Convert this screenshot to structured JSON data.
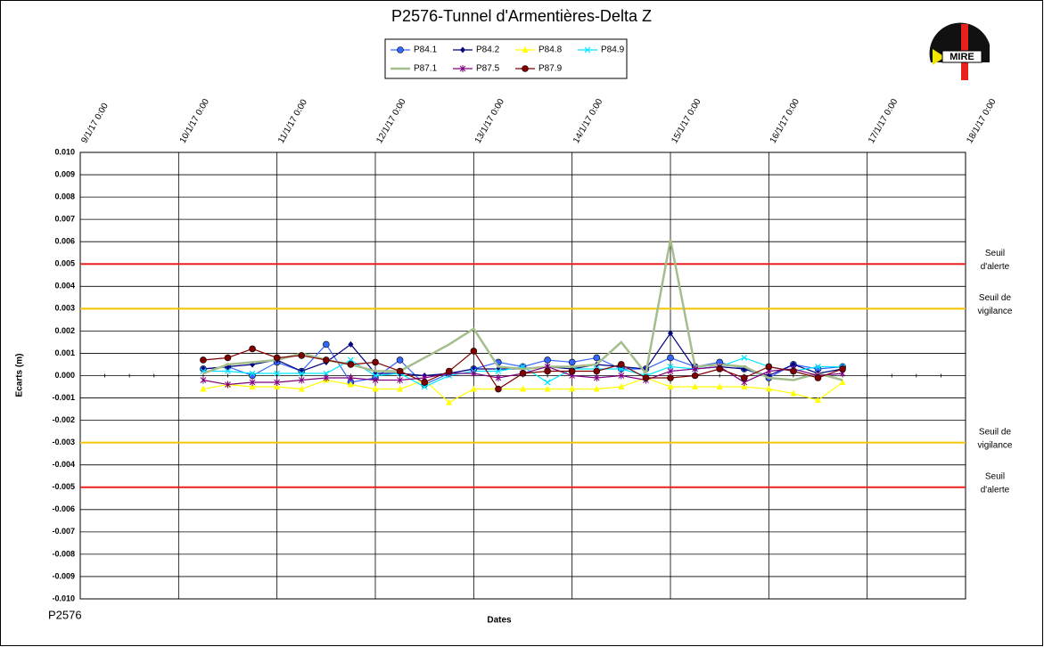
{
  "chart_data": {
    "type": "line",
    "title": "P2576-Tunnel  d'Armentières-Delta  Z",
    "y_label": "Ecarts (m)",
    "x_label": "Dates",
    "footer": "P2576",
    "logo": "MIRE",
    "grid": true,
    "legend_position": "top",
    "xlim": [
      "2017-01-09T00:00",
      "2017-01-18T00:00"
    ],
    "xticks": [
      {
        "value": "2017-01-09T00:00",
        "label": "9/1/17 0:00"
      },
      {
        "value": "2017-01-10T00:00",
        "label": "10/1/17 0:00"
      },
      {
        "value": "2017-01-11T00:00",
        "label": "11/1/17 0:00"
      },
      {
        "value": "2017-01-12T00:00",
        "label": "12/1/17 0:00"
      },
      {
        "value": "2017-01-13T00:00",
        "label": "13/1/17 0:00"
      },
      {
        "value": "2017-01-14T00:00",
        "label": "14/1/17 0:00"
      },
      {
        "value": "2017-01-15T00:00",
        "label": "15/1/17 0:00"
      },
      {
        "value": "2017-01-16T00:00",
        "label": "16/1/17 0:00"
      },
      {
        "value": "2017-01-17T00:00",
        "label": "17/1/17 0:00"
      },
      {
        "value": "2017-01-18T00:00",
        "label": "18/1/17 0:00"
      }
    ],
    "ylim": [
      -0.01,
      0.01
    ],
    "yticks": [
      {
        "value": 0.01,
        "label": "0.010"
      },
      {
        "value": 0.009,
        "label": "0.009"
      },
      {
        "value": 0.008,
        "label": "0.008"
      },
      {
        "value": 0.007,
        "label": "0.007"
      },
      {
        "value": 0.006,
        "label": "0.006"
      },
      {
        "value": 0.005,
        "label": "0.005"
      },
      {
        "value": 0.004,
        "label": "0.004"
      },
      {
        "value": 0.003,
        "label": "0.003"
      },
      {
        "value": 0.002,
        "label": "0.002"
      },
      {
        "value": 0.001,
        "label": "0.001"
      },
      {
        "value": 0,
        "label": "0.000"
      },
      {
        "value": -0.001,
        "label": "-0.001"
      },
      {
        "value": -0.002,
        "label": "-0.002"
      },
      {
        "value": -0.003,
        "label": "-0.003"
      },
      {
        "value": -0.004,
        "label": "-0.004"
      },
      {
        "value": -0.005,
        "label": "-0.005"
      },
      {
        "value": -0.006,
        "label": "-0.006"
      },
      {
        "value": -0.007,
        "label": "-0.007"
      },
      {
        "value": -0.008,
        "label": "-0.008"
      },
      {
        "value": -0.009,
        "label": "-0.009"
      },
      {
        "value": -0.01,
        "label": "-0.010"
      }
    ],
    "thresholds": [
      {
        "value": 0.005,
        "color": "#e8211d",
        "label": [
          "Seuil",
          "d'alerte"
        ]
      },
      {
        "value": 0.003,
        "color": "#f2c500",
        "label": [
          "Seuil de",
          "vigilance"
        ]
      },
      {
        "value": -0.003,
        "color": "#f2c500",
        "label": [
          "Seuil de",
          "vigilance"
        ]
      },
      {
        "value": -0.005,
        "color": "#e8211d",
        "label": [
          "Seuil",
          "d'alerte"
        ]
      }
    ],
    "x": [
      "2017-01-10T06:00",
      "2017-01-10T12:00",
      "2017-01-10T18:00",
      "2017-01-11T00:00",
      "2017-01-11T06:00",
      "2017-01-11T12:00",
      "2017-01-11T18:00",
      "2017-01-12T00:00",
      "2017-01-12T06:00",
      "2017-01-12T12:00",
      "2017-01-12T18:00",
      "2017-01-13T00:00",
      "2017-01-13T06:00",
      "2017-01-13T12:00",
      "2017-01-13T18:00",
      "2017-01-14T00:00",
      "2017-01-14T06:00",
      "2017-01-14T12:00",
      "2017-01-14T18:00",
      "2017-01-15T00:00",
      "2017-01-15T06:00",
      "2017-01-15T12:00",
      "2017-01-15T18:00",
      "2017-01-16T00:00",
      "2017-01-16T06:00",
      "2017-01-16T12:00",
      "2017-01-16T18:00"
    ],
    "series": [
      {
        "name": "P84.1",
        "color": "#3366ff",
        "marker": "circle",
        "values": [
          0.0003,
          0.0004,
          0.0,
          0.0006,
          0.0002,
          0.0014,
          -0.0003,
          -0.0001,
          0.0007,
          -0.0004,
          0.0001,
          0.0003,
          0.0006,
          0.0004,
          0.0007,
          0.0006,
          0.0008,
          0.0003,
          0.0003,
          0.0008,
          0.0004,
          0.0006,
          0.0003,
          -0.0001,
          0.0005,
          0.0003,
          0.0004
        ]
      },
      {
        "name": "P84.2",
        "color": "#000080",
        "marker": "diamond",
        "values": [
          0.0003,
          0.0004,
          0.0005,
          0.0007,
          0.0002,
          0.0006,
          0.0014,
          0.0001,
          0.0001,
          0.0,
          0.0001,
          0.0003,
          0.0003,
          0.0003,
          0.0004,
          0.0003,
          0.0005,
          0.0004,
          0.0003,
          0.0019,
          0.0003,
          0.0004,
          0.0003,
          0.0,
          0.0005,
          0.0001,
          0.0003
        ]
      },
      {
        "name": "P84.8",
        "color": "#ffff00",
        "marker": "triangle",
        "values": [
          -0.0006,
          -0.0004,
          -0.0005,
          -0.0005,
          -0.0006,
          -0.0002,
          -0.0004,
          -0.0006,
          -0.0006,
          -0.0002,
          -0.0012,
          -0.0006,
          -0.0006,
          -0.0006,
          -0.0006,
          -0.0006,
          -0.0006,
          -0.0005,
          -0.0001,
          -0.0005,
          -0.0005,
          -0.0005,
          -0.0005,
          -0.0006,
          -0.0008,
          -0.0011,
          -0.0003
        ]
      },
      {
        "name": "P84.9",
        "color": "#00e5ff",
        "marker": "x",
        "values": [
          0.0002,
          0.0002,
          0.0001,
          0.0001,
          0.0001,
          0.0001,
          0.0007,
          0.0,
          0.0001,
          -0.0005,
          0.0,
          0.0002,
          0.0002,
          0.0004,
          -0.0003,
          0.0003,
          0.0003,
          0.0003,
          0.0,
          0.0004,
          0.0003,
          0.0004,
          0.0008,
          0.0004,
          0.0002,
          0.0004,
          0.0004
        ]
      },
      {
        "name": "P87.1",
        "color": "#a3be8c",
        "marker": "none",
        "values": [
          0.0001,
          0.0005,
          0.0006,
          0.0007,
          0.001,
          0.0007,
          0.0005,
          0.0002,
          0.0002,
          0.0008,
          0.0014,
          0.0021,
          0.0004,
          0.0003,
          0.0004,
          0.0004,
          0.0005,
          0.0015,
          0.0001,
          0.0061,
          0.0004,
          0.0005,
          0.0004,
          -0.0001,
          -0.0002,
          0.0001,
          -0.0002
        ]
      },
      {
        "name": "P87.5",
        "color": "#800080",
        "marker": "star",
        "values": [
          -0.0002,
          -0.0004,
          -0.0003,
          -0.0003,
          -0.0002,
          -0.0001,
          -0.0001,
          -0.0002,
          -0.0002,
          -0.0001,
          0.0001,
          0.0001,
          -0.0001,
          0.0001,
          0.0004,
          0.0,
          -0.0001,
          0.0,
          -0.0002,
          0.0002,
          0.0003,
          0.0004,
          -0.0003,
          0.0002,
          0.0003,
          0.0,
          0.0001
        ]
      },
      {
        "name": "P87.9",
        "color": "#800000",
        "marker": "circle",
        "values": [
          0.0007,
          0.0008,
          0.0012,
          0.0008,
          0.0009,
          0.0007,
          0.0005,
          0.0006,
          0.0002,
          -0.0003,
          0.0002,
          0.0011,
          -0.0006,
          0.0001,
          0.0002,
          0.0002,
          0.0002,
          0.0005,
          -0.0001,
          -0.0001,
          0.0,
          0.0003,
          -0.0001,
          0.0004,
          0.0002,
          -0.0001,
          0.0003
        ]
      }
    ]
  }
}
